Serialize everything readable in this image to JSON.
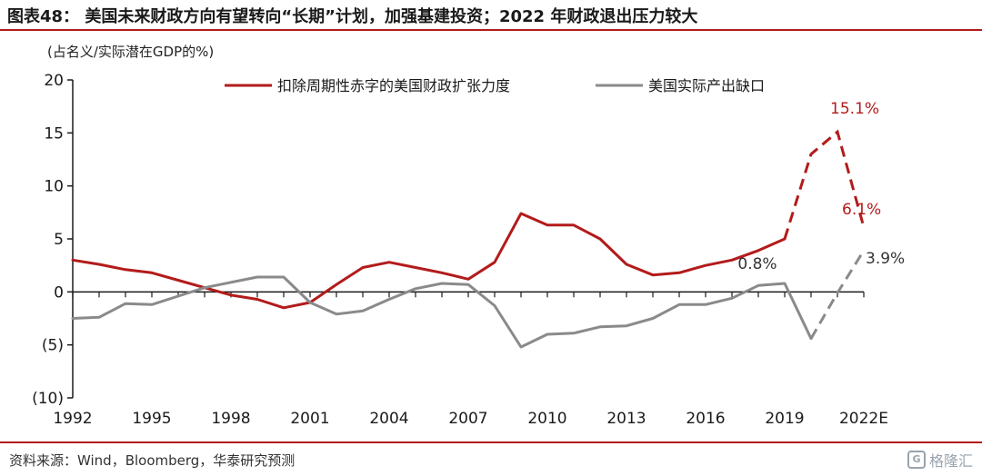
{
  "header": {
    "title": "图表48：  美国未来财政方向有望转向“长期”计划，加强基建投资；2022 年财政退出压力较大"
  },
  "chart_data": {
    "type": "line",
    "unit_label": "(占名义/实际潜在GDP的%)",
    "y_ticks": [
      "20",
      "15",
      "10",
      "5",
      "0",
      "(5)",
      "(10)"
    ],
    "x_ticks": [
      "1992",
      "1995",
      "1998",
      "2001",
      "2004",
      "2007",
      "2010",
      "2013",
      "2016",
      "2019",
      "2022E"
    ],
    "ylim": [
      -10,
      20
    ],
    "xlim": [
      1992,
      2022
    ],
    "legend_position": "top",
    "series": [
      {
        "name": "扣除周期性赤字的美国财政扩张力度",
        "color": "#b31b1b",
        "x": [
          1992,
          1993,
          1994,
          1995,
          1996,
          1997,
          1998,
          1999,
          2000,
          2001,
          2002,
          2003,
          2004,
          2005,
          2006,
          2007,
          2008,
          2009,
          2010,
          2011,
          2012,
          2013,
          2014,
          2015,
          2016,
          2017,
          2018,
          2019,
          2020,
          2021,
          2022
        ],
        "values": [
          3.0,
          2.6,
          2.1,
          1.8,
          1.1,
          0.4,
          -0.3,
          -0.7,
          -1.5,
          -1.0,
          0.7,
          2.3,
          2.8,
          2.3,
          1.8,
          1.2,
          2.8,
          7.4,
          6.3,
          6.3,
          5.0,
          2.6,
          1.6,
          1.8,
          2.5,
          3.0,
          3.9,
          5.0,
          13.0,
          15.1,
          6.1
        ],
        "dashed_from": 2019
      },
      {
        "name": "美国实际产出缺口",
        "color": "#8a8a8a",
        "x": [
          1992,
          1993,
          1994,
          1995,
          1996,
          1997,
          1998,
          1999,
          2000,
          2001,
          2002,
          2003,
          2004,
          2005,
          2006,
          2007,
          2008,
          2009,
          2010,
          2011,
          2012,
          2013,
          2014,
          2015,
          2016,
          2017,
          2018,
          2019,
          2020,
          2021,
          2022
        ],
        "values": [
          -2.5,
          -2.4,
          -1.1,
          -1.2,
          -0.4,
          0.4,
          0.9,
          1.4,
          1.4,
          -1.0,
          -2.1,
          -1.8,
          -0.7,
          0.3,
          0.8,
          0.7,
          -1.3,
          -5.2,
          -4.0,
          -3.9,
          -3.3,
          -3.2,
          -2.5,
          -1.2,
          -1.2,
          -0.6,
          0.6,
          0.8,
          -4.4,
          -0.1,
          3.9
        ],
        "dashed_from": 2020
      }
    ],
    "annotations": [
      {
        "text": "15.1%",
        "series": 0,
        "x": 2021
      },
      {
        "text": "6.1%",
        "series": 0,
        "x": 2022
      },
      {
        "text": "0.8%",
        "series": 1,
        "x": 2019
      },
      {
        "text": "3.9%",
        "series": 1,
        "x": 2022
      }
    ]
  },
  "footer": {
    "source": "资料来源：Wind，Bloomberg，华泰研究预测",
    "watermark": "格隆汇",
    "watermark_logo": "G"
  },
  "colors": {
    "accent": "#b31b1b",
    "axis": "#1a1a1a"
  }
}
